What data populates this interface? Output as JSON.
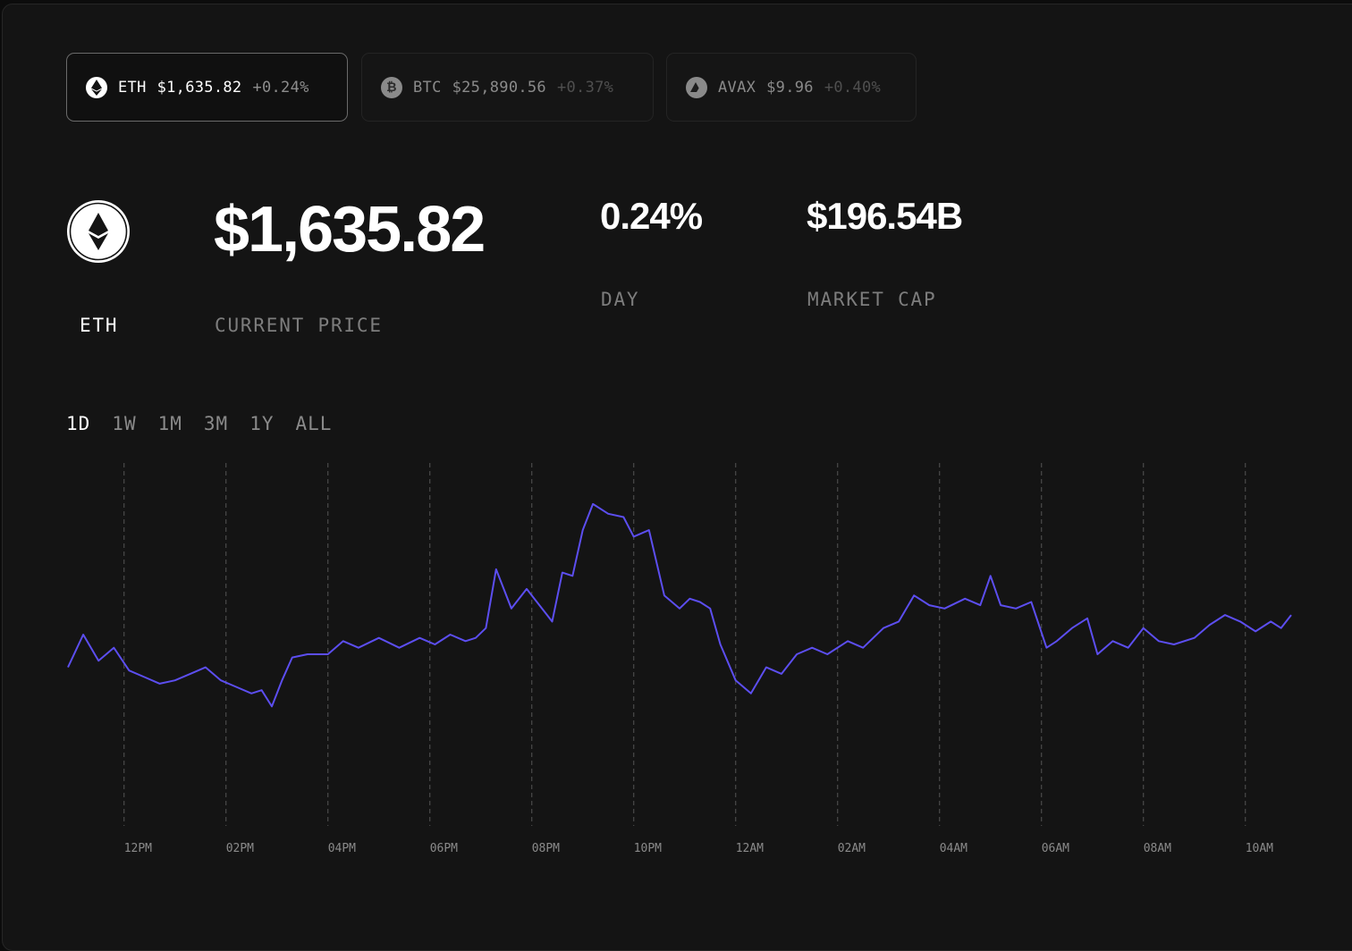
{
  "tokens": [
    {
      "symbol": "ETH",
      "price": "$1,635.82",
      "change": "+0.24%",
      "active": true,
      "icon": "eth-icon"
    },
    {
      "symbol": "BTC",
      "price": "$25,890.56",
      "change": "+0.37%",
      "active": false,
      "icon": "btc-icon"
    },
    {
      "symbol": "AVAX",
      "price": "$9.96",
      "change": "+0.40%",
      "active": false,
      "icon": "avax-icon"
    }
  ],
  "stats": {
    "asset_label": "ETH",
    "price": "$1,635.82",
    "price_label": "CURRENT PRICE",
    "day_change": "0.24%",
    "day_label": "DAY",
    "market_cap": "$196.54B",
    "market_cap_label": "MARKET CAP"
  },
  "ranges": [
    "1D",
    "1W",
    "1M",
    "3M",
    "1Y",
    "ALL"
  ],
  "active_range": "1D",
  "colors": {
    "line": "#5c4ef0",
    "background": "#141414",
    "grid": "#4a4a4a"
  },
  "chart_data": {
    "type": "line",
    "title": "",
    "xlabel": "",
    "ylabel": "",
    "x_ticks": [
      "12PM",
      "02PM",
      "04PM",
      "06PM",
      "08PM",
      "10PM",
      "12AM",
      "02AM",
      "04AM",
      "06AM",
      "08AM",
      "10AM"
    ],
    "x_range_hours": [
      10.9,
      34.9
    ],
    "grid": "vertical-dashed",
    "y_range": [
      1570,
      1680
    ],
    "series": [
      {
        "name": "",
        "color": "#5c4ef0",
        "x": [
          10.9,
          11.2,
          11.5,
          11.8,
          12.1,
          12.4,
          12.7,
          13.0,
          13.3,
          13.6,
          13.9,
          14.2,
          14.5,
          14.7,
          14.9,
          15.1,
          15.3,
          15.6,
          16.0,
          16.3,
          16.6,
          17.0,
          17.4,
          17.8,
          18.1,
          18.4,
          18.7,
          18.9,
          19.1,
          19.3,
          19.6,
          19.9,
          20.2,
          20.4,
          20.6,
          20.8,
          21.0,
          21.2,
          21.5,
          21.8,
          22.0,
          22.3,
          22.6,
          22.9,
          23.1,
          23.3,
          23.5,
          23.7,
          24.0,
          24.3,
          24.6,
          24.9,
          25.2,
          25.5,
          25.8,
          26.2,
          26.5,
          26.9,
          27.2,
          27.5,
          27.8,
          28.1,
          28.5,
          28.8,
          29.0,
          29.2,
          29.5,
          29.8,
          30.1,
          30.3,
          30.6,
          30.9,
          31.1,
          31.4,
          31.7,
          32.0,
          32.3,
          32.6,
          33.0,
          33.3,
          33.6,
          33.9,
          34.2,
          34.5,
          34.7,
          34.9
        ],
        "y": [
          1618,
          1628,
          1620,
          1624,
          1617,
          1615,
          1613,
          1614,
          1616,
          1618,
          1614,
          1612,
          1610,
          1611,
          1606,
          1614,
          1621,
          1622,
          1622,
          1626,
          1624,
          1627,
          1624,
          1627,
          1625,
          1628,
          1626,
          1627,
          1630,
          1648,
          1636,
          1642,
          1636,
          1632,
          1647,
          1646,
          1660,
          1668,
          1665,
          1664,
          1658,
          1660,
          1640,
          1636,
          1639,
          1638,
          1636,
          1625,
          1614,
          1610,
          1618,
          1616,
          1622,
          1624,
          1622,
          1626,
          1624,
          1630,
          1632,
          1640,
          1637,
          1636,
          1639,
          1637,
          1646,
          1637,
          1636,
          1638,
          1624,
          1626,
          1630,
          1633,
          1622,
          1626,
          1624,
          1630,
          1626,
          1625,
          1627,
          1631,
          1634,
          1632,
          1629,
          1632,
          1630,
          1634
        ]
      }
    ]
  }
}
